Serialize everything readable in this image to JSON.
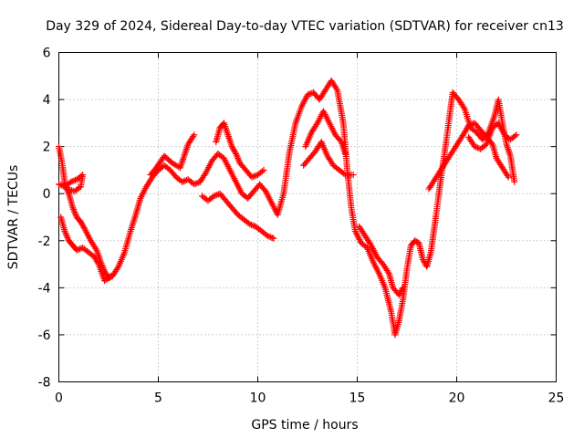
{
  "chart_data": {
    "type": "scatter",
    "title": "Day 329 of 2024, Sidereal Day-to-day VTEC variation (SDTVAR) for receiver cn13",
    "xlabel": "GPS time / hours",
    "ylabel": "SDTVAR / TECUs",
    "xlim": [
      0,
      25
    ],
    "ylim": [
      -8,
      6
    ],
    "x_ticks": [
      "0",
      "5",
      "10",
      "15",
      "20",
      "25"
    ],
    "y_ticks": [
      "-8",
      "-6",
      "-4",
      "-2",
      "0",
      "2",
      "4",
      "6"
    ],
    "grid": true,
    "marker": "plus",
    "color": "#ff0000",
    "series": [
      {
        "points": [
          [
            0.0,
            2.0
          ],
          [
            0.1,
            1.6
          ],
          [
            0.2,
            1.1
          ],
          [
            0.3,
            0.4
          ],
          [
            0.5,
            0.0
          ],
          [
            0.7,
            -0.6
          ],
          [
            0.9,
            -1.0
          ],
          [
            1.1,
            -1.2
          ],
          [
            1.3,
            -1.5
          ],
          [
            1.6,
            -2.0
          ],
          [
            1.9,
            -2.4
          ],
          [
            2.1,
            -2.9
          ],
          [
            2.3,
            -3.3
          ],
          [
            2.5,
            -3.6
          ],
          [
            2.7,
            -3.5
          ],
          [
            3.0,
            -3.1
          ],
          [
            3.3,
            -2.5
          ],
          [
            3.6,
            -1.6
          ],
          [
            3.9,
            -0.8
          ],
          [
            4.1,
            -0.2
          ],
          [
            4.4,
            0.3
          ],
          [
            4.7,
            0.7
          ],
          [
            5.0,
            1.0
          ],
          [
            5.3,
            1.2
          ],
          [
            5.6,
            1.0
          ],
          [
            5.9,
            0.7
          ],
          [
            6.2,
            0.5
          ],
          [
            6.5,
            0.6
          ],
          [
            6.8,
            0.4
          ],
          [
            7.1,
            0.5
          ],
          [
            7.4,
            0.9
          ],
          [
            7.7,
            1.4
          ],
          [
            8.0,
            1.7
          ],
          [
            8.3,
            1.5
          ],
          [
            8.6,
            1.0
          ],
          [
            8.9,
            0.5
          ],
          [
            9.2,
            0.0
          ],
          [
            9.5,
            -0.2
          ],
          [
            9.8,
            0.1
          ],
          [
            10.1,
            0.4
          ],
          [
            10.4,
            0.1
          ],
          [
            10.7,
            -0.4
          ],
          [
            11.0,
            -0.9
          ],
          [
            11.3,
            0.0
          ],
          [
            11.6,
            1.8
          ],
          [
            11.9,
            3.0
          ],
          [
            12.2,
            3.7
          ],
          [
            12.5,
            4.2
          ],
          [
            12.8,
            4.3
          ],
          [
            13.1,
            4.0
          ],
          [
            13.4,
            4.4
          ],
          [
            13.7,
            4.8
          ],
          [
            14.0,
            4.4
          ],
          [
            14.3,
            3.0
          ],
          [
            14.5,
            1.0
          ],
          [
            14.7,
            -0.6
          ],
          [
            14.9,
            -1.6
          ],
          [
            15.2,
            -2.1
          ],
          [
            15.5,
            -2.3
          ],
          [
            15.8,
            -2.9
          ],
          [
            16.1,
            -3.4
          ],
          [
            16.4,
            -4.0
          ],
          [
            16.7,
            -5.0
          ],
          [
            16.9,
            -6.0
          ],
          [
            17.1,
            -5.4
          ],
          [
            17.3,
            -4.5
          ],
          [
            17.5,
            -3.2
          ],
          [
            17.7,
            -2.2
          ],
          [
            17.9,
            -2.0
          ],
          [
            18.1,
            -2.1
          ],
          [
            18.3,
            -2.8
          ],
          [
            18.5,
            -3.1
          ],
          [
            18.7,
            -2.5
          ],
          [
            18.9,
            -1.3
          ],
          [
            19.2,
            0.6
          ],
          [
            19.5,
            2.4
          ],
          [
            19.8,
            4.3
          ],
          [
            20.1,
            4.0
          ],
          [
            20.4,
            3.6
          ],
          [
            20.7,
            2.8
          ],
          [
            21.0,
            2.6
          ],
          [
            21.3,
            2.3
          ],
          [
            21.6,
            2.6
          ],
          [
            21.9,
            3.3
          ],
          [
            22.1,
            4.0
          ],
          [
            22.3,
            3.0
          ],
          [
            22.5,
            2.1
          ],
          [
            22.7,
            1.6
          ],
          [
            22.9,
            0.5
          ]
        ]
      },
      {
        "points": [
          [
            0.0,
            0.4
          ],
          [
            0.3,
            0.3
          ],
          [
            0.6,
            0.5
          ],
          [
            0.9,
            0.6
          ],
          [
            1.2,
            0.8
          ],
          [
            1.1,
            0.3
          ],
          [
            0.8,
            0.1
          ],
          [
            0.4,
            0.2
          ]
        ]
      },
      {
        "points": [
          [
            0.1,
            -1.0
          ],
          [
            0.3,
            -1.6
          ],
          [
            0.5,
            -2.0
          ],
          [
            0.7,
            -2.2
          ],
          [
            0.9,
            -2.4
          ],
          [
            1.2,
            -2.3
          ],
          [
            1.5,
            -2.5
          ],
          [
            1.8,
            -2.7
          ],
          [
            2.0,
            -3.0
          ],
          [
            2.3,
            -3.7
          ],
          [
            2.6,
            -3.5
          ]
        ]
      },
      {
        "points": [
          [
            4.6,
            0.8
          ],
          [
            4.9,
            1.1
          ],
          [
            5.3,
            1.6
          ],
          [
            5.7,
            1.3
          ],
          [
            6.1,
            1.1
          ],
          [
            6.3,
            1.6
          ],
          [
            6.5,
            2.1
          ],
          [
            6.8,
            2.5
          ]
        ]
      },
      {
        "points": [
          [
            7.2,
            -0.1
          ],
          [
            7.5,
            -0.3
          ],
          [
            7.8,
            -0.1
          ],
          [
            8.1,
            0.0
          ],
          [
            8.4,
            -0.3
          ],
          [
            8.7,
            -0.6
          ],
          [
            9.0,
            -0.9
          ],
          [
            9.3,
            -1.1
          ],
          [
            9.6,
            -1.3
          ],
          [
            9.9,
            -1.4
          ],
          [
            10.2,
            -1.6
          ],
          [
            10.5,
            -1.8
          ],
          [
            10.8,
            -1.9
          ]
        ]
      },
      {
        "points": [
          [
            7.9,
            2.2
          ],
          [
            8.1,
            2.8
          ],
          [
            8.3,
            3.0
          ],
          [
            8.5,
            2.5
          ],
          [
            8.7,
            2.0
          ],
          [
            8.9,
            1.7
          ],
          [
            9.1,
            1.3
          ],
          [
            9.4,
            1.0
          ],
          [
            9.7,
            0.7
          ],
          [
            10.0,
            0.8
          ],
          [
            10.3,
            1.0
          ]
        ]
      },
      {
        "points": [
          [
            12.4,
            2.0
          ],
          [
            12.7,
            2.6
          ],
          [
            13.0,
            3.0
          ],
          [
            13.3,
            3.5
          ],
          [
            13.6,
            3.0
          ],
          [
            13.9,
            2.5
          ],
          [
            14.2,
            2.2
          ],
          [
            14.4,
            1.7
          ]
        ]
      },
      {
        "points": [
          [
            12.3,
            1.2
          ],
          [
            12.6,
            1.5
          ],
          [
            12.9,
            1.8
          ],
          [
            13.2,
            2.2
          ],
          [
            13.5,
            1.6
          ],
          [
            13.8,
            1.2
          ],
          [
            14.1,
            1.0
          ],
          [
            14.4,
            0.8
          ],
          [
            14.8,
            0.8
          ]
        ]
      },
      {
        "points": [
          [
            15.1,
            -1.4
          ],
          [
            15.4,
            -1.8
          ],
          [
            15.7,
            -2.2
          ],
          [
            16.0,
            -2.7
          ],
          [
            16.3,
            -3.0
          ],
          [
            16.6,
            -3.4
          ],
          [
            16.8,
            -4.0
          ],
          [
            17.1,
            -4.3
          ],
          [
            17.3,
            -4.0
          ]
        ]
      },
      {
        "points": [
          [
            18.6,
            0.2
          ],
          [
            18.9,
            0.6
          ],
          [
            19.2,
            1.0
          ],
          [
            19.5,
            1.4
          ],
          [
            19.8,
            1.8
          ],
          [
            20.1,
            2.2
          ],
          [
            20.4,
            2.6
          ],
          [
            20.6,
            2.9
          ],
          [
            20.9,
            3.0
          ],
          [
            21.2,
            2.7
          ],
          [
            21.5,
            2.4
          ],
          [
            21.8,
            2.1
          ],
          [
            22.0,
            1.5
          ],
          [
            22.3,
            1.1
          ],
          [
            22.6,
            0.7
          ]
        ]
      },
      {
        "points": [
          [
            20.6,
            2.4
          ],
          [
            20.9,
            2.0
          ],
          [
            21.2,
            1.9
          ],
          [
            21.5,
            2.1
          ],
          [
            21.8,
            2.8
          ],
          [
            22.1,
            3.0
          ],
          [
            22.4,
            2.5
          ],
          [
            22.7,
            2.3
          ],
          [
            23.0,
            2.5
          ]
        ]
      }
    ]
  }
}
